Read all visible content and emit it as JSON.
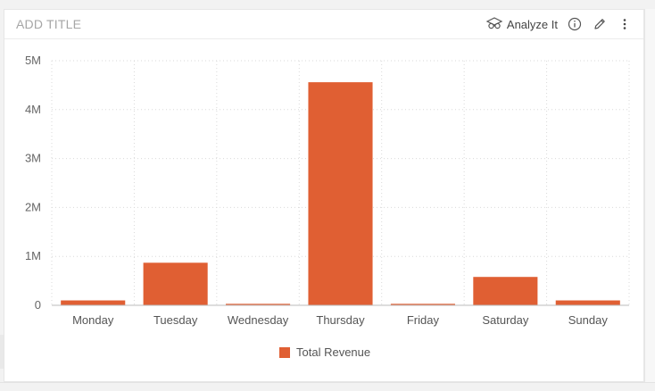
{
  "widget": {
    "title": "ADD TITLE",
    "analyze_label": "Analyze It",
    "icons": {
      "analyze": "analyze-glasses-icon",
      "info": "info-icon",
      "edit": "pencil-icon",
      "more": "vertical-ellipsis-icon"
    },
    "accent_color": "#e05f33"
  },
  "chart_data": {
    "type": "bar",
    "categories": [
      "Monday",
      "Tuesday",
      "Wednesday",
      "Thursday",
      "Friday",
      "Saturday",
      "Sunday"
    ],
    "series": [
      {
        "name": "Total Revenue",
        "values": [
          100000,
          870000,
          30000,
          4560000,
          30000,
          580000,
          100000
        ]
      }
    ],
    "y_ticks": [
      0,
      1000000,
      2000000,
      3000000,
      4000000,
      5000000
    ],
    "y_tick_labels": [
      "0",
      "1M",
      "2M",
      "3M",
      "4M",
      "5M"
    ],
    "ylim": [
      0,
      5000000
    ],
    "title": "",
    "xlabel": "",
    "ylabel": "",
    "grid": true,
    "legend_position": "bottom-center"
  }
}
